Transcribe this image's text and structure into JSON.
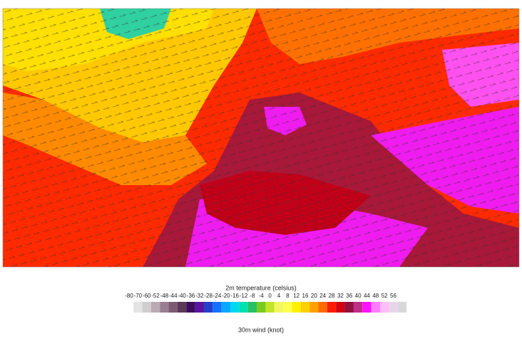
{
  "legend": {
    "title": "2m temperature (celsius)",
    "ticks": [
      -80,
      -70,
      -60,
      -52,
      -48,
      -44,
      -40,
      -36,
      -32,
      -28,
      -24,
      -20,
      -16,
      -12,
      -8,
      -4,
      0,
      4,
      8,
      12,
      16,
      20,
      24,
      28,
      32,
      36,
      40,
      44,
      48,
      52,
      56
    ],
    "colors": [
      "#e4e4e4",
      "#cfcfcf",
      "#b9aab4",
      "#9a7e92",
      "#7c5a74",
      "#5a3856",
      "#3c0c5c",
      "#5a14a0",
      "#2440c8",
      "#1470ff",
      "#08a8ff",
      "#00d8f0",
      "#00e0b0",
      "#28c060",
      "#78cc20",
      "#c4e428",
      "#f0f860",
      "#ffff50",
      "#fff000",
      "#ffd000",
      "#ffa000",
      "#ff6a00",
      "#ff1a00",
      "#d00010",
      "#901040",
      "#c02c8c",
      "#ff10ff",
      "#ff7cff",
      "#ffbcf8",
      "#e8d4e8",
      "#d8d8d8"
    ]
  },
  "wind_label": "30m wind (knot)"
}
